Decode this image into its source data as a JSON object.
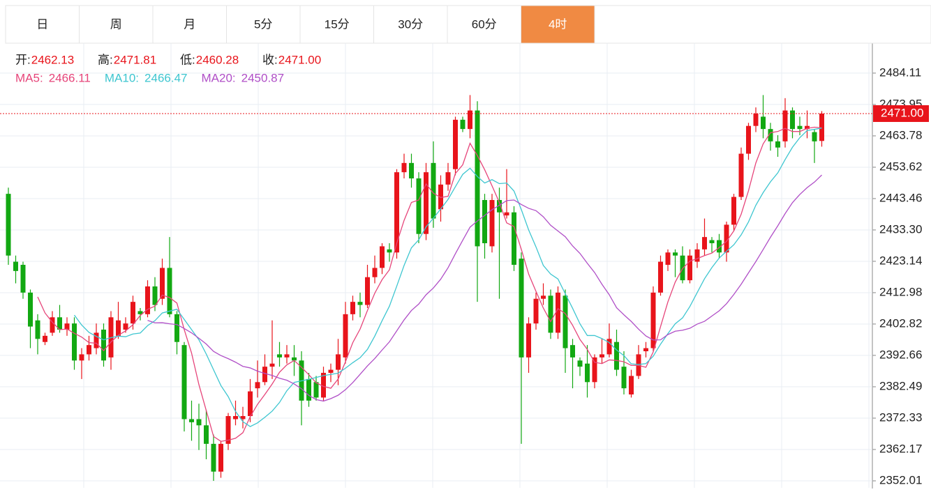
{
  "tabs": [
    "日",
    "周",
    "月",
    "5分",
    "15分",
    "30分",
    "60分",
    "4时"
  ],
  "active_tab": 7,
  "chart_data": {
    "type": "candlestick",
    "ohlc_labels": [
      {
        "label": "开:",
        "value": "2462.13"
      },
      {
        "label": "高:",
        "value": "2471.81"
      },
      {
        "label": "低:",
        "value": "2460.28"
      },
      {
        "label": "收:",
        "value": "2471.00"
      }
    ],
    "ma": [
      {
        "name": "MA5:",
        "period": 5,
        "color": "#e6457a",
        "value_label": "2466.11"
      },
      {
        "name": "MA10:",
        "period": 10,
        "color": "#3ec6d0",
        "value_label": "2466.47"
      },
      {
        "name": "MA20:",
        "period": 20,
        "color": "#b04fc7",
        "value_label": "2450.87"
      }
    ],
    "up_color": "#e8141b",
    "down_color": "#12a812",
    "last_price": {
      "value": 2471,
      "label": "2471.00"
    },
    "ylim": [
      2349.75,
      2493.8
    ],
    "yticks": [
      2352.01,
      2362.17,
      2372.33,
      2382.49,
      2392.66,
      2402.82,
      2412.98,
      2423.14,
      {
        "value": 2433.3,
        "label": "2433.30"
      },
      2443.46,
      2453.62,
      2463.78,
      2473.95,
      2484.11
    ],
    "grid": true,
    "open": [
      2445,
      2423,
      2422,
      2413,
      2404,
      2397,
      2400,
      2405,
      2401,
      2403,
      2391,
      2393,
      2395,
      2401,
      2392,
      2399,
      2401,
      2403,
      2407,
      2406,
      2415,
      2411,
      2421,
      2406,
      2396,
      2372,
      2372,
      2370,
      2364,
      2355,
      2364,
      2372,
      2372,
      2373,
      2382,
      2384,
      2389,
      2393,
      2392,
      2392,
      2391,
      2385,
      2384,
      2379,
      2387,
      2388,
      2392,
      2406,
      2410,
      2409,
      2418,
      2421,
      2427,
      2426,
      2452,
      2455,
      2450,
      2432,
      2455,
      2440,
      2448,
      2453,
      2469,
      2466,
      2472,
      2443,
      2428,
      2443,
      2438,
      2439,
      2424,
      2392,
      2403,
      2411,
      2412,
      2400,
      2412,
      2396,
      2391,
      2390,
      2384,
      2392,
      2393,
      2397,
      2389,
      2380,
      2386,
      2394,
      2395,
      2413,
      2422,
      2426,
      2425,
      2417,
      2423,
      2427,
      2430,
      2430,
      2426,
      2435,
      2444,
      2458,
      2467,
      2470,
      2466,
      2462,
      2462,
      2472,
      2467,
      2466,
      2465,
      2462.13
    ],
    "high": [
      2447,
      2425,
      2423,
      2414,
      2406,
      2400,
      2407,
      2409,
      2405,
      2405,
      2395,
      2399,
      2403,
      2403,
      2407,
      2410,
      2405,
      2412,
      2408,
      2417,
      2418,
      2424,
      2431,
      2407,
      2397,
      2378,
      2377,
      2375,
      2367,
      2365,
      2374,
      2378,
      2376,
      2385,
      2391,
      2393,
      2404,
      2397,
      2396,
      2396,
      2394,
      2387,
      2386,
      2389,
      2390,
      2398,
      2410,
      2412,
      2413,
      2422,
      2425,
      2429,
      2429,
      2453,
      2458,
      2458,
      2452,
      2455,
      2462,
      2451,
      2455,
      2470,
      2470,
      2477,
      2475,
      2445,
      2445,
      2447,
      2453,
      2441,
      2426,
      2405,
      2413,
      2416,
      2414,
      2415,
      2414,
      2398,
      2392,
      2396,
      2393,
      2398,
      2403,
      2401,
      2394,
      2388,
      2396,
      2397,
      2415,
      2425,
      2427,
      2427,
      2428,
      2427,
      2429,
      2437,
      2431,
      2432,
      2436,
      2445,
      2460,
      2468,
      2473,
      2477,
      2468,
      2464,
      2476,
      2473,
      2470,
      2472,
      2466,
      2471.81
    ],
    "low": [
      2422,
      2416,
      2411,
      2395,
      2393,
      2396,
      2399,
      2400,
      2399,
      2388,
      2385,
      2391,
      2393,
      2389,
      2388,
      2398,
      2400,
      2401,
      2404,
      2405,
      2407,
      2409,
      2405,
      2393,
      2368,
      2365,
      2362,
      2359,
      2352,
      2353,
      2362,
      2370,
      2369,
      2371,
      2379,
      2383,
      2385,
      2389,
      2390,
      2386,
      2370,
      2376,
      2378,
      2378,
      2384,
      2383,
      2390,
      2404,
      2405,
      2408,
      2416,
      2419,
      2423,
      2424,
      2450,
      2447,
      2429,
      2430,
      2434,
      2436,
      2446,
      2451,
      2465,
      2463,
      2410,
      2424,
      2426,
      2411,
      2437,
      2420,
      2364,
      2387,
      2401,
      2409,
      2398,
      2398,
      2387,
      2382,
      2386,
      2379,
      2382,
      2390,
      2392,
      2386,
      2380,
      2379,
      2385,
      2392,
      2394,
      2412,
      2420,
      2418,
      2416,
      2416,
      2421,
      2425,
      2426,
      2424,
      2423,
      2433,
      2443,
      2456,
      2465,
      2463,
      2459,
      2457,
      2460,
      2463,
      2464,
      2463,
      2455,
      2460.28
    ],
    "close": [
      2425,
      2420,
      2413,
      2402,
      2398,
      2399,
      2405,
      2401,
      2403,
      2391,
      2393,
      2396,
      2400,
      2391,
      2405,
      2404,
      2403,
      2410,
      2406,
      2415,
      2409,
      2421,
      2406,
      2397,
      2372,
      2371,
      2370,
      2364,
      2355,
      2364,
      2373,
      2373,
      2373,
      2381,
      2384,
      2389,
      2390,
      2392,
      2393,
      2391,
      2378,
      2378,
      2379,
      2387,
      2388,
      2393,
      2406,
      2410,
      2409,
      2418,
      2421,
      2428,
      2426,
      2452,
      2455,
      2450,
      2432,
      2452,
      2437,
      2448,
      2452,
      2469,
      2466,
      2472,
      2428,
      2429,
      2443,
      2439,
      2439,
      2422,
      2392,
      2403,
      2411,
      2412,
      2400,
      2413,
      2395,
      2392,
      2389,
      2384,
      2392,
      2393,
      2398,
      2388,
      2382,
      2386,
      2393,
      2395,
      2413,
      2423,
      2426,
      2425,
      2417,
      2425,
      2427,
      2431,
      2429,
      2426,
      2435,
      2444,
      2458,
      2467,
      2471,
      2466,
      2462,
      2460,
      2472,
      2466,
      2466,
      2467,
      2462,
      2471
    ]
  }
}
